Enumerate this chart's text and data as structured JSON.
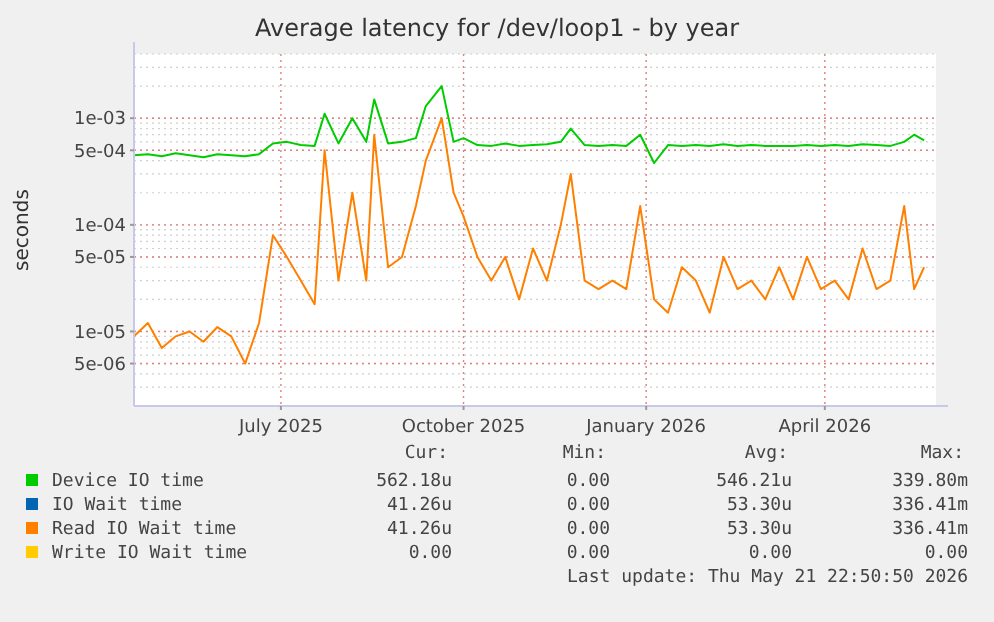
{
  "chart_data": {
    "type": "line",
    "title": "Average latency for /dev/loop1 - by year",
    "ylabel": "seconds",
    "log": "y",
    "grid": true,
    "legend": "bottom",
    "marker": "none",
    "line_style": "solid",
    "xlim": [
      "2025-04-18",
      "2026-05-27"
    ],
    "xticks": [
      {
        "value": "2025-07-01",
        "label": "July 2025"
      },
      {
        "value": "2025-10-01",
        "label": "October 2025"
      },
      {
        "value": "2026-01-01",
        "label": "January 2026"
      },
      {
        "value": "2026-04-01",
        "label": "April 2026"
      }
    ],
    "ylim": [
      2e-06,
      0.004
    ],
    "yticks": [
      {
        "value": 5e-06,
        "label": "5e-06"
      },
      {
        "value": 1e-05,
        "label": "1e-05"
      },
      {
        "value": 5e-05,
        "label": "5e-05"
      },
      {
        "value": 0.0001,
        "label": "1e-04"
      },
      {
        "value": 0.0005,
        "label": "5e-04"
      },
      {
        "value": 0.001,
        "label": "1e-03"
      }
    ],
    "x": [
      "2025-04-18",
      "2025-04-25",
      "2025-05-02",
      "2025-05-09",
      "2025-05-16",
      "2025-05-23",
      "2025-05-30",
      "2025-06-06",
      "2025-06-13",
      "2025-06-20",
      "2025-06-27",
      "2025-07-04",
      "2025-07-11",
      "2025-07-18",
      "2025-07-23",
      "2025-07-30",
      "2025-08-06",
      "2025-08-13",
      "2025-08-17",
      "2025-08-24",
      "2025-08-31",
      "2025-09-07",
      "2025-09-12",
      "2025-09-20",
      "2025-09-26",
      "2025-10-01",
      "2025-10-08",
      "2025-10-15",
      "2025-10-22",
      "2025-10-29",
      "2025-11-05",
      "2025-11-12",
      "2025-11-19",
      "2025-11-24",
      "2025-12-01",
      "2025-12-08",
      "2025-12-15",
      "2025-12-22",
      "2025-12-29",
      "2026-01-05",
      "2026-01-12",
      "2026-01-19",
      "2026-01-26",
      "2026-02-02",
      "2026-02-09",
      "2026-02-16",
      "2026-02-23",
      "2026-03-02",
      "2026-03-09",
      "2026-03-16",
      "2026-03-23",
      "2026-03-30",
      "2026-04-06",
      "2026-04-13",
      "2026-04-20",
      "2026-04-27",
      "2026-05-04",
      "2026-05-11",
      "2026-05-16",
      "2026-05-21"
    ],
    "series": [
      {
        "name": "Device IO time",
        "color": "#00cc00",
        "values": [
          0.00045,
          0.00046,
          0.00044,
          0.00047,
          0.00045,
          0.00043,
          0.00046,
          0.00045,
          0.00044,
          0.00046,
          0.00058,
          0.0006,
          0.00056,
          0.00055,
          0.0011,
          0.00058,
          0.001,
          0.0006,
          0.0015,
          0.00058,
          0.0006,
          0.00065,
          0.0013,
          0.002,
          0.0006,
          0.00065,
          0.00056,
          0.00055,
          0.00058,
          0.00055,
          0.00056,
          0.00057,
          0.0006,
          0.0008,
          0.00056,
          0.00055,
          0.00056,
          0.00055,
          0.0007,
          0.00038,
          0.00056,
          0.00055,
          0.00056,
          0.00055,
          0.00057,
          0.00055,
          0.00056,
          0.00055,
          0.00055,
          0.00055,
          0.00056,
          0.00055,
          0.00056,
          0.00055,
          0.00057,
          0.00056,
          0.00055,
          0.0006,
          0.0007,
          0.00062
        ]
      },
      {
        "name": "IO Wait time",
        "color": "#0066b3",
        "values": [
          null,
          null,
          null,
          null,
          null,
          null,
          null,
          null,
          null,
          null,
          null,
          null,
          null,
          null,
          null,
          null,
          null,
          null,
          null,
          null,
          null,
          null,
          null,
          null,
          null,
          null,
          null,
          null,
          null,
          null,
          null,
          null,
          null,
          null,
          null,
          null,
          null,
          null,
          null,
          null,
          null,
          null,
          null,
          null,
          null,
          null,
          null,
          null,
          null,
          null,
          null,
          null,
          null,
          null,
          null,
          null,
          null,
          null,
          null,
          null
        ]
      },
      {
        "name": "Read IO Wait time",
        "color": "#ff8000",
        "values": [
          9e-06,
          1.2e-05,
          7e-06,
          9e-06,
          1e-05,
          8e-06,
          1.1e-05,
          9e-06,
          5e-06,
          1.2e-05,
          8e-05,
          5e-05,
          3e-05,
          1.8e-05,
          0.0005,
          3e-05,
          0.0002,
          3e-05,
          0.0007,
          4e-05,
          5e-05,
          0.00015,
          0.0004,
          0.001,
          0.0002,
          0.00012,
          5e-05,
          3e-05,
          5e-05,
          2e-05,
          6e-05,
          3e-05,
          0.0001,
          0.0003,
          3e-05,
          2.5e-05,
          3e-05,
          2.5e-05,
          0.00015,
          2e-05,
          1.5e-05,
          4e-05,
          3e-05,
          1.5e-05,
          5e-05,
          2.5e-05,
          3e-05,
          2e-05,
          4e-05,
          2e-05,
          5e-05,
          2.5e-05,
          3e-05,
          2e-05,
          6e-05,
          2.5e-05,
          3e-05,
          0.00015,
          2.5e-05,
          4e-05
        ]
      },
      {
        "name": "Write IO Wait time",
        "color": "#ffcc00",
        "values": [
          null,
          null,
          null,
          null,
          null,
          null,
          null,
          null,
          null,
          null,
          null,
          null,
          null,
          null,
          null,
          null,
          null,
          null,
          null,
          null,
          null,
          null,
          null,
          null,
          null,
          null,
          null,
          null,
          null,
          null,
          null,
          null,
          null,
          null,
          null,
          null,
          null,
          null,
          null,
          null,
          null,
          null,
          null,
          null,
          null,
          null,
          null,
          null,
          null,
          null,
          null,
          null,
          null,
          null,
          null,
          null,
          null,
          null,
          null,
          null
        ]
      }
    ],
    "annotations": [
      "Cur:",
      "Min:",
      "Avg:",
      "Max:",
      "562.18u",
      "0.00",
      "546.21u",
      "339.80m",
      "41.26u",
      "0.00",
      "53.30u",
      "336.41m",
      "41.26u",
      "0.00",
      "53.30u",
      "336.41m",
      "0.00",
      "0.00",
      "0.00",
      "0.00",
      "Last update: Thu May 21 22:50:50 2026"
    ]
  }
}
